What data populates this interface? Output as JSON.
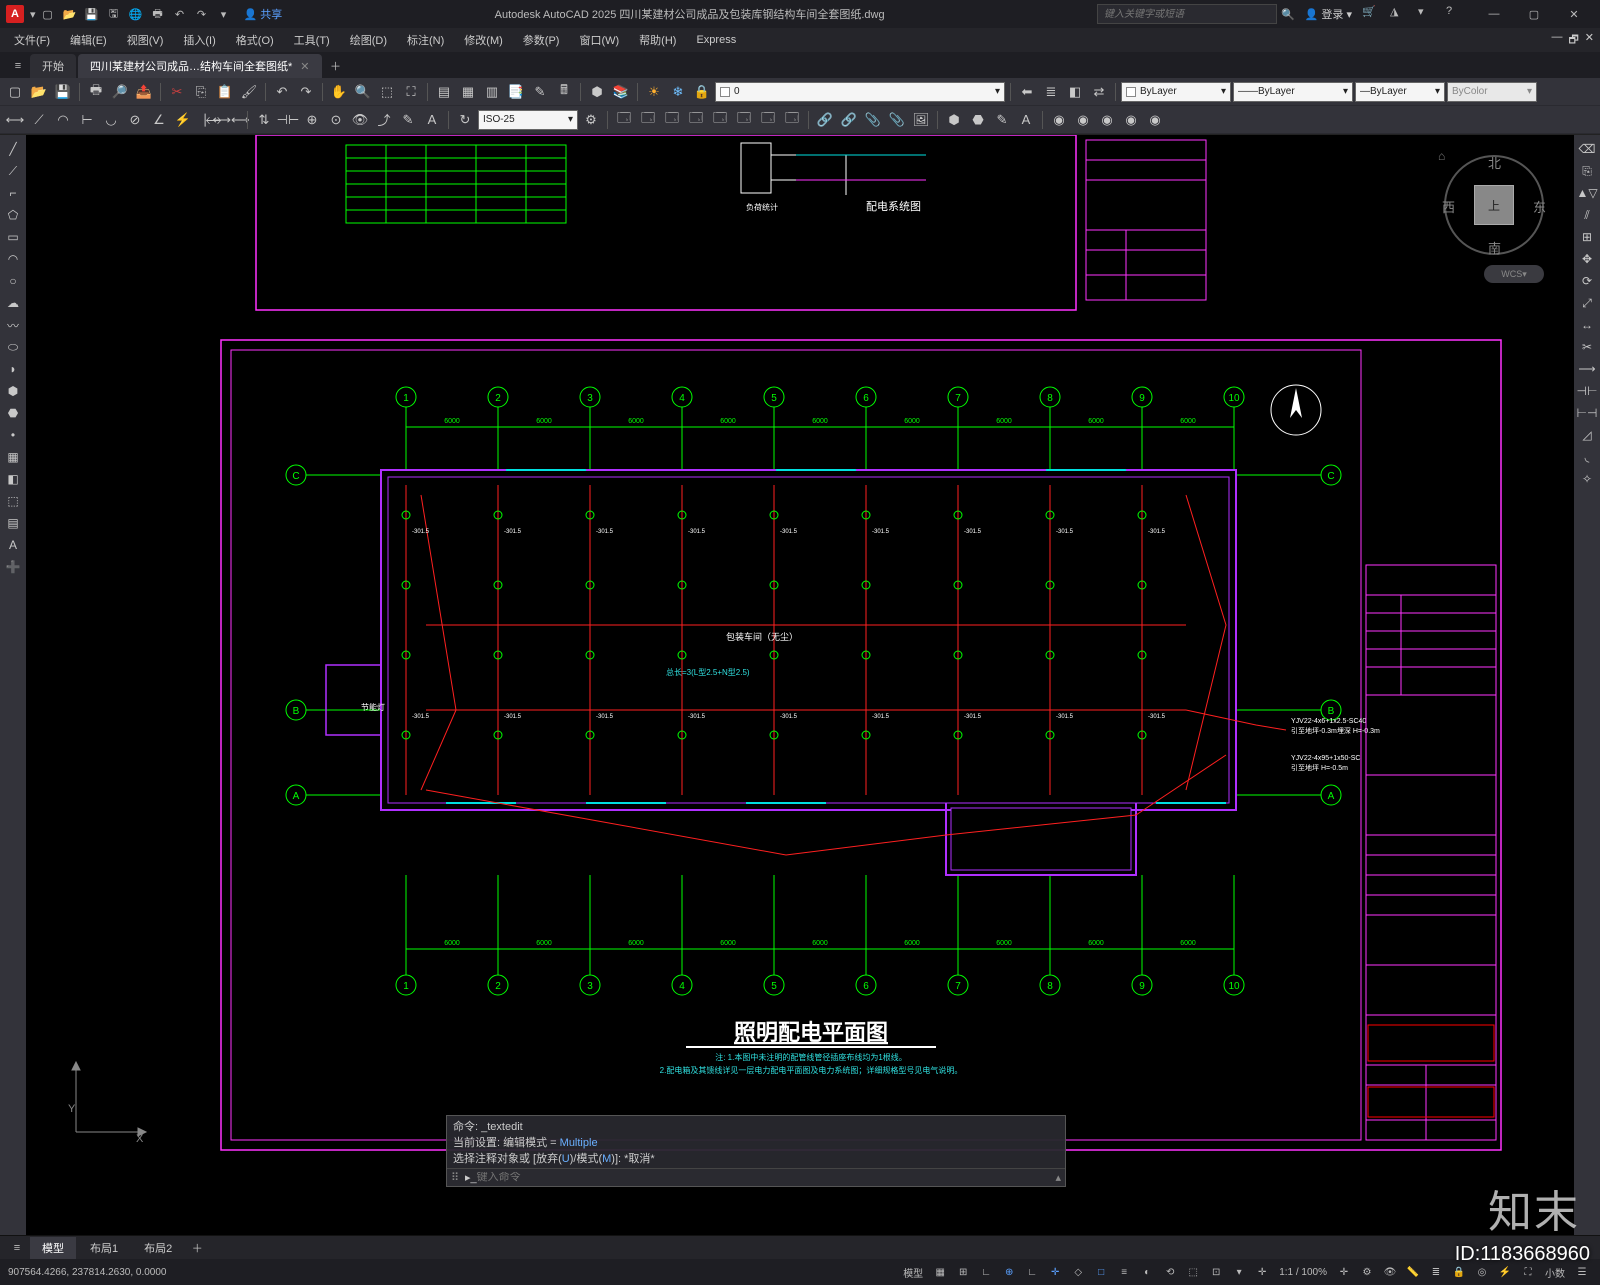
{
  "app": {
    "title": "Autodesk AutoCAD 2025   四川某建材公司成品及包装库钢结构车间全套图纸.dwg",
    "icon_letter": "A",
    "search_placeholder": "键入关键字或短语",
    "login": "登录",
    "share": "共享"
  },
  "menus": [
    "文件(F)",
    "编辑(E)",
    "视图(V)",
    "插入(I)",
    "格式(O)",
    "工具(T)",
    "绘图(D)",
    "标注(N)",
    "修改(M)",
    "参数(P)",
    "窗口(W)",
    "帮助(H)",
    "Express"
  ],
  "tabs": {
    "start": "开始",
    "document": "四川某建材公司成品…结构车间全套图纸*"
  },
  "layer_combo_value": "0",
  "linetype_combo": "ByLayer",
  "lineweight_combo": "ByLayer",
  "color_combo": "ByColor",
  "dimstyle": "ISO-25",
  "viewcube": {
    "top": "上",
    "north": "北",
    "south": "南",
    "east": "东",
    "west": "西",
    "wcs": "WCS"
  },
  "ucs": {
    "x": "X",
    "y": "Y"
  },
  "drawing": {
    "title": "照明配电平面图",
    "note1": "注: 1.本图中未注明的配管线管径插座布线均为1根线。",
    "note2": "2.配电箱及其馈线详见一层电力配电平面图及电力系统图；详细规格型号见电气说明。",
    "upper_title": "配电系统图",
    "upper_label": "负荷统计",
    "room_label": "包装车间（无尘）",
    "wire_label": "总长=3(L型2.5+N型2.5)",
    "light_label": "节能灯",
    "cable1": "YJV22-4x6+1x2.5-SC40",
    "cable1_note": "引至地坪-0.3m埋深 H=-0.3m",
    "cable2": "YJV22-4x95+1x50-SC",
    "cable2_note": "引至地坪 H=-0.5m",
    "gridline_top": [
      "1",
      "2",
      "3",
      "4",
      "5",
      "6",
      "7",
      "8",
      "9",
      "10"
    ],
    "gridline_bottom": [
      "1",
      "2",
      "3",
      "4",
      "5",
      "6",
      "7",
      "8",
      "9",
      "10"
    ],
    "gridline_left_top": [
      "B",
      "A"
    ],
    "gridline_left_mid": [
      "C",
      "B",
      "A"
    ],
    "dims_top": [
      "6000",
      "6000",
      "6000",
      "6000",
      "6000",
      "6000",
      "6000",
      "6000",
      "6000"
    ],
    "dims_bottom": [
      "6000",
      "6000",
      "6000",
      "6000",
      "6000",
      "6000",
      "6000",
      "6000",
      "6000"
    ],
    "val_labels": "-301.5",
    "colors": {
      "border": "#ff33ff",
      "title_border": "#ff0000",
      "grid": "#00ff00",
      "wall": "#b030ff",
      "wire_red": "#ff2020",
      "cyan": "#00e0e0",
      "text_cyan": "#30e0e0",
      "text_white": "#ffffff",
      "text_magenta": "#ff40ff"
    }
  },
  "cmdline": {
    "l1": "命令: _textedit",
    "l2_a": "当前设置: 编辑模式 = ",
    "l2_b": "Multiple",
    "l3_a": "选择注释对象或 [放弃(",
    "l3_b": "U",
    "l3_c": ")/模式(",
    "l3_d": "M",
    "l3_e": ")]: *取消*",
    "prompt": "键入命令"
  },
  "bottom_tabs": {
    "model": "模型",
    "layout1": "布局1",
    "layout2": "布局2"
  },
  "statusbar": {
    "coords": "907564.4266, 237814.2630, 0.0000",
    "scale": "1:1 / 100%",
    "decimal": "小数",
    "model": "模型"
  },
  "watermark": {
    "id": "ID:1183668960",
    "logo": "知末"
  }
}
